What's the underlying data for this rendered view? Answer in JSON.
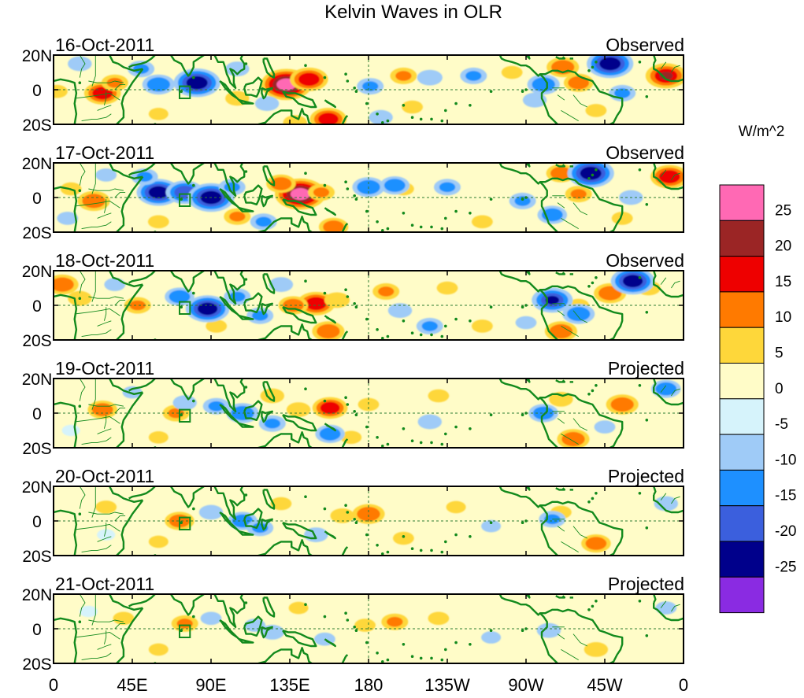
{
  "chart_data": {
    "type": "heatmap",
    "title": "Kelvin Waves in OLR",
    "variable": "OLR anomaly",
    "units_label": "W/m^2",
    "lat_range": [
      -20,
      20
    ],
    "lon_range": [
      0,
      360
    ],
    "x_ticks": [
      {
        "lon": 0,
        "label": "0"
      },
      {
        "lon": 45,
        "label": "45E"
      },
      {
        "lon": 90,
        "label": "90E"
      },
      {
        "lon": 135,
        "label": "135E"
      },
      {
        "lon": 180,
        "label": "180"
      },
      {
        "lon": 225,
        "label": "135W"
      },
      {
        "lon": 270,
        "label": "90W"
      },
      {
        "lon": 315,
        "label": "45W"
      },
      {
        "lon": 360,
        "label": "0"
      }
    ],
    "y_ticks": [
      {
        "lat": 20,
        "label": "20N"
      },
      {
        "lat": 0,
        "label": "0"
      },
      {
        "lat": -20,
        "label": "20S"
      }
    ],
    "reference_lines": {
      "equator_lat": 0,
      "dateline_lon": 180
    },
    "marker_box": {
      "lon": [
        72,
        78
      ],
      "lat": [
        -5,
        2
      ]
    },
    "colorbar": {
      "levels": [
        -25,
        -20,
        -15,
        -10,
        -5,
        0,
        5,
        10,
        15,
        20,
        25
      ],
      "colors": [
        "#8a2be2",
        "#00008b",
        "#3b5fdd",
        "#1e90ff",
        "#9fcbf7",
        "#d6f3fb",
        "#fffcc8",
        "#fed73a",
        "#ff7a00",
        "#ee0000",
        "#9b2525",
        "#ff69b4"
      ]
    },
    "panels": [
      {
        "date": "16-Oct-2011",
        "status": "Observed",
        "anomalies": [
          {
            "lon": 133,
            "lat": 3,
            "value": 27
          },
          {
            "lon": 146,
            "lat": 6,
            "value": 18
          },
          {
            "lon": 28,
            "lat": -2,
            "value": 17
          },
          {
            "lon": 35,
            "lat": 4,
            "value": 10
          },
          {
            "lon": 105,
            "lat": -5,
            "value": 8
          },
          {
            "lon": 157,
            "lat": -17,
            "value": 17
          },
          {
            "lon": 138,
            "lat": -19,
            "value": 8
          },
          {
            "lon": 200,
            "lat": 8,
            "value": 10
          },
          {
            "lon": 262,
            "lat": 10,
            "value": 6
          },
          {
            "lon": 291,
            "lat": 13,
            "value": 14
          },
          {
            "lon": 300,
            "lat": 4,
            "value": 12
          },
          {
            "lon": 350,
            "lat": 8,
            "value": 20
          },
          {
            "lon": 2,
            "lat": -1,
            "value": 6
          },
          {
            "lon": 205,
            "lat": -10,
            "value": 6
          },
          {
            "lon": 248,
            "lat": -8,
            "value": 4
          },
          {
            "lon": 310,
            "lat": -12,
            "value": 6
          },
          {
            "lon": 60,
            "lat": -14,
            "value": 5
          },
          {
            "lon": 82,
            "lat": 4,
            "value": -24
          },
          {
            "lon": 60,
            "lat": 3,
            "value": -14
          },
          {
            "lon": 50,
            "lat": 12,
            "value": -10
          },
          {
            "lon": 15,
            "lat": 15,
            "value": -8
          },
          {
            "lon": 105,
            "lat": 12,
            "value": -8
          },
          {
            "lon": 181,
            "lat": 2,
            "value": -10
          },
          {
            "lon": 187,
            "lat": -16,
            "value": -8
          },
          {
            "lon": 215,
            "lat": 7,
            "value": -9
          },
          {
            "lon": 240,
            "lat": 8,
            "value": -10
          },
          {
            "lon": 280,
            "lat": 3,
            "value": -14
          },
          {
            "lon": 318,
            "lat": 15,
            "value": -24
          },
          {
            "lon": 275,
            "lat": -6,
            "value": -8
          },
          {
            "lon": 325,
            "lat": -2,
            "value": -10
          },
          {
            "lon": 122,
            "lat": -8,
            "value": -8
          }
        ]
      },
      {
        "date": "17-Oct-2011",
        "status": "Observed",
        "anomalies": [
          {
            "lon": 141,
            "lat": 2,
            "value": 27
          },
          {
            "lon": 130,
            "lat": 8,
            "value": 12
          },
          {
            "lon": 153,
            "lat": 3,
            "value": 10
          },
          {
            "lon": 23,
            "lat": -2,
            "value": 14
          },
          {
            "lon": 10,
            "lat": 5,
            "value": 6
          },
          {
            "lon": 105,
            "lat": -11,
            "value": 10
          },
          {
            "lon": 160,
            "lat": -17,
            "value": 12
          },
          {
            "lon": 200,
            "lat": 5,
            "value": 6
          },
          {
            "lon": 245,
            "lat": -14,
            "value": 6
          },
          {
            "lon": 290,
            "lat": 14,
            "value": 12
          },
          {
            "lon": 300,
            "lat": 2,
            "value": 10
          },
          {
            "lon": 352,
            "lat": 12,
            "value": 18
          },
          {
            "lon": 325,
            "lat": -12,
            "value": 6
          },
          {
            "lon": 60,
            "lat": -14,
            "value": 6
          },
          {
            "lon": 60,
            "lat": 3,
            "value": -22
          },
          {
            "lon": 75,
            "lat": 3,
            "value": -18
          },
          {
            "lon": 90,
            "lat": 0,
            "value": -24
          },
          {
            "lon": 102,
            "lat": 6,
            "value": -10
          },
          {
            "lon": 52,
            "lat": 12,
            "value": -10
          },
          {
            "lon": 180,
            "lat": 6,
            "value": -14
          },
          {
            "lon": 195,
            "lat": 7,
            "value": -12
          },
          {
            "lon": 225,
            "lat": 6,
            "value": -10
          },
          {
            "lon": 268,
            "lat": -2,
            "value": -10
          },
          {
            "lon": 285,
            "lat": -10,
            "value": -12
          },
          {
            "lon": 307,
            "lat": 14,
            "value": -24
          },
          {
            "lon": 330,
            "lat": 0,
            "value": -8
          },
          {
            "lon": 120,
            "lat": -14,
            "value": -10
          },
          {
            "lon": 30,
            "lat": 13,
            "value": -6
          },
          {
            "lon": 8,
            "lat": -12,
            "value": -6
          }
        ]
      },
      {
        "date": "18-Oct-2011",
        "status": "Observed",
        "anomalies": [
          {
            "lon": 150,
            "lat": 1,
            "value": 18
          },
          {
            "lon": 137,
            "lat": 0,
            "value": 12
          },
          {
            "lon": 162,
            "lat": 3,
            "value": 9
          },
          {
            "lon": 5,
            "lat": 12,
            "value": 14
          },
          {
            "lon": 15,
            "lat": 4,
            "value": 8
          },
          {
            "lon": 48,
            "lat": 0,
            "value": 10
          },
          {
            "lon": 93,
            "lat": -12,
            "value": 6
          },
          {
            "lon": 157,
            "lat": -15,
            "value": 14
          },
          {
            "lon": 190,
            "lat": 8,
            "value": 10
          },
          {
            "lon": 225,
            "lat": 10,
            "value": 6
          },
          {
            "lon": 245,
            "lat": -12,
            "value": 6
          },
          {
            "lon": 290,
            "lat": -15,
            "value": 14
          },
          {
            "lon": 318,
            "lat": 7,
            "value": 14
          },
          {
            "lon": 340,
            "lat": 10,
            "value": 8
          },
          {
            "lon": 300,
            "lat": 0,
            "value": 6
          },
          {
            "lon": 88,
            "lat": -2,
            "value": -22
          },
          {
            "lon": 72,
            "lat": 5,
            "value": -12
          },
          {
            "lon": 105,
            "lat": 5,
            "value": -10
          },
          {
            "lon": 118,
            "lat": -6,
            "value": -10
          },
          {
            "lon": 285,
            "lat": 3,
            "value": -20
          },
          {
            "lon": 300,
            "lat": -5,
            "value": -14
          },
          {
            "lon": 331,
            "lat": 14,
            "value": -22
          },
          {
            "lon": 215,
            "lat": -12,
            "value": -10
          },
          {
            "lon": 198,
            "lat": -3,
            "value": -8
          },
          {
            "lon": 130,
            "lat": 12,
            "value": -8
          },
          {
            "lon": 35,
            "lat": 12,
            "value": -6
          },
          {
            "lon": 270,
            "lat": -10,
            "value": -6
          }
        ]
      },
      {
        "date": "19-Oct-2011",
        "status": "Projected",
        "anomalies": [
          {
            "lon": 158,
            "lat": 3,
            "value": 16
          },
          {
            "lon": 140,
            "lat": 2,
            "value": 8
          },
          {
            "lon": 180,
            "lat": 5,
            "value": 6
          },
          {
            "lon": 28,
            "lat": 2,
            "value": 12
          },
          {
            "lon": 70,
            "lat": 0,
            "value": 10
          },
          {
            "lon": 125,
            "lat": 10,
            "value": 8
          },
          {
            "lon": 170,
            "lat": -14,
            "value": 6
          },
          {
            "lon": 220,
            "lat": 10,
            "value": 6
          },
          {
            "lon": 290,
            "lat": 8,
            "value": 8
          },
          {
            "lon": 325,
            "lat": 5,
            "value": 14
          },
          {
            "lon": 297,
            "lat": -15,
            "value": 14
          },
          {
            "lon": 60,
            "lat": -14,
            "value": 5
          },
          {
            "lon": 250,
            "lat": -8,
            "value": 4
          },
          {
            "lon": 108,
            "lat": 0,
            "value": -14
          },
          {
            "lon": 93,
            "lat": 4,
            "value": -10
          },
          {
            "lon": 125,
            "lat": -6,
            "value": -10
          },
          {
            "lon": 158,
            "lat": -12,
            "value": -12
          },
          {
            "lon": 75,
            "lat": 6,
            "value": -8
          },
          {
            "lon": 215,
            "lat": -5,
            "value": -8
          },
          {
            "lon": 280,
            "lat": 0,
            "value": -12
          },
          {
            "lon": 350,
            "lat": 14,
            "value": -12
          },
          {
            "lon": 315,
            "lat": -8,
            "value": -6
          },
          {
            "lon": 45,
            "lat": 12,
            "value": -5
          },
          {
            "lon": 10,
            "lat": -10,
            "value": -4
          }
        ]
      },
      {
        "date": "20-Oct-2011",
        "status": "Projected",
        "anomalies": [
          {
            "lon": 180,
            "lat": 4,
            "value": 14
          },
          {
            "lon": 165,
            "lat": 3,
            "value": 8
          },
          {
            "lon": 72,
            "lat": 0,
            "value": 12
          },
          {
            "lon": 30,
            "lat": 8,
            "value": 6
          },
          {
            "lon": 130,
            "lat": 10,
            "value": 6
          },
          {
            "lon": 310,
            "lat": -13,
            "value": 12
          },
          {
            "lon": 290,
            "lat": 5,
            "value": 6
          },
          {
            "lon": 230,
            "lat": 8,
            "value": 5
          },
          {
            "lon": 200,
            "lat": -10,
            "value": 6
          },
          {
            "lon": 60,
            "lat": -12,
            "value": 5
          },
          {
            "lon": 108,
            "lat": 0,
            "value": -12
          },
          {
            "lon": 118,
            "lat": -4,
            "value": -10
          },
          {
            "lon": 150,
            "lat": -8,
            "value": -8
          },
          {
            "lon": 90,
            "lat": 5,
            "value": -8
          },
          {
            "lon": 285,
            "lat": 1,
            "value": -10
          },
          {
            "lon": 350,
            "lat": 10,
            "value": -8
          },
          {
            "lon": 250,
            "lat": -3,
            "value": -5
          },
          {
            "lon": 30,
            "lat": -8,
            "value": -4
          }
        ]
      },
      {
        "date": "21-Oct-2011",
        "status": "Projected",
        "anomalies": [
          {
            "lon": 195,
            "lat": 4,
            "value": 10
          },
          {
            "lon": 178,
            "lat": 2,
            "value": 6
          },
          {
            "lon": 220,
            "lat": 6,
            "value": 6
          },
          {
            "lon": 75,
            "lat": 3,
            "value": 10
          },
          {
            "lon": 40,
            "lat": 6,
            "value": 6
          },
          {
            "lon": 310,
            "lat": -12,
            "value": 8
          },
          {
            "lon": 60,
            "lat": -12,
            "value": 5
          },
          {
            "lon": 140,
            "lat": 12,
            "value": 5
          },
          {
            "lon": 125,
            "lat": -2,
            "value": -8
          },
          {
            "lon": 115,
            "lat": 2,
            "value": -6
          },
          {
            "lon": 155,
            "lat": -6,
            "value": -6
          },
          {
            "lon": 90,
            "lat": 6,
            "value": -6
          },
          {
            "lon": 283,
            "lat": -1,
            "value": -8
          },
          {
            "lon": 350,
            "lat": 12,
            "value": -6
          },
          {
            "lon": 250,
            "lat": -5,
            "value": -5
          },
          {
            "lon": 20,
            "lat": 10,
            "value": -4
          }
        ]
      }
    ]
  }
}
